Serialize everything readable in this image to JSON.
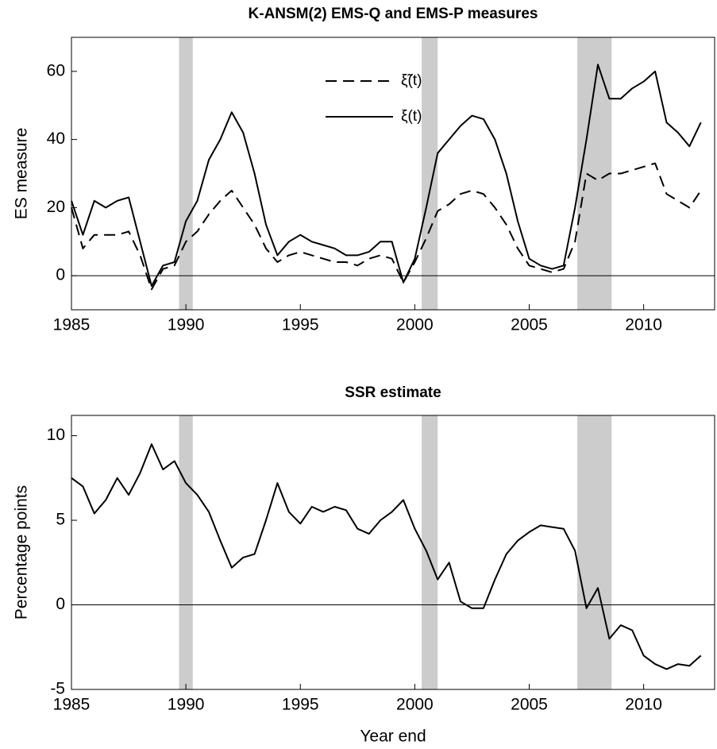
{
  "chart_data": [
    {
      "type": "line",
      "title": "K-ANSM(2) EMS-Q and EMS-P measures",
      "ylabel": "ES measure",
      "x": [
        1985,
        1985.5,
        1986,
        1986.5,
        1987,
        1987.5,
        1988,
        1988.5,
        1989,
        1989.5,
        1990,
        1990.5,
        1991,
        1991.5,
        1992,
        1992.5,
        1993,
        1993.5,
        1994,
        1994.5,
        1995,
        1995.5,
        1996,
        1996.5,
        1997,
        1997.5,
        1998,
        1998.5,
        1999,
        1999.5,
        2000,
        2000.5,
        2001,
        2001.5,
        2002,
        2002.5,
        2003,
        2003.5,
        2004,
        2004.5,
        2005,
        2005.5,
        2006,
        2006.5,
        2007,
        2007.5,
        2008,
        2008.5,
        2009,
        2009.5,
        2010,
        2010.5,
        2011,
        2011.5,
        2012,
        2012.5
      ],
      "series": [
        {
          "name": "ξ̃(t)",
          "color": "#000000",
          "style": "dashed",
          "values": [
            20,
            8,
            12,
            12,
            12,
            13,
            6,
            -4,
            2,
            3,
            10,
            13,
            18,
            22,
            25,
            20,
            15,
            8,
            4,
            6,
            7,
            6,
            5,
            4,
            4,
            3,
            5,
            6,
            5,
            -2,
            4,
            11,
            19,
            21,
            24,
            25,
            24,
            20,
            15,
            8,
            3,
            2,
            1,
            2,
            10,
            30,
            28,
            30,
            30,
            31,
            32,
            33,
            24,
            22,
            20,
            25
          ]
        },
        {
          "name": "ξ(t)",
          "color": "#000000",
          "style": "solid",
          "values": [
            22,
            12,
            22,
            20,
            22,
            23,
            10,
            -3,
            3,
            4,
            16,
            22,
            34,
            40,
            48,
            42,
            30,
            15,
            6,
            10,
            12,
            10,
            9,
            8,
            6,
            6,
            7,
            10,
            10,
            -2,
            5,
            20,
            36,
            40,
            44,
            47,
            46,
            40,
            30,
            16,
            5,
            3,
            2,
            3,
            20,
            40,
            62,
            52,
            52,
            55,
            57,
            60,
            45,
            42,
            38,
            45
          ]
        }
      ],
      "xlim": [
        1985,
        2013.1
      ],
      "xticks": [
        1985,
        1990,
        1995,
        2000,
        2005,
        2010
      ],
      "ylim": [
        -10,
        70
      ],
      "yticks": [
        0,
        20,
        40,
        60
      ],
      "reference_line": 0,
      "shaded_regions": [
        [
          1989.7,
          1990.3
        ],
        [
          2000.3,
          2001.0
        ],
        [
          2007.1,
          2008.6
        ]
      ],
      "shade_color": "#cccccc",
      "legend": "upper center"
    },
    {
      "type": "line",
      "title": "SSR estimate",
      "ylabel": "Percentage points",
      "xlabel": "Year end",
      "x": [
        1985,
        1985.5,
        1986,
        1986.5,
        1987,
        1987.5,
        1988,
        1988.5,
        1989,
        1989.5,
        1990,
        1990.5,
        1991,
        1991.5,
        1992,
        1992.5,
        1993,
        1993.5,
        1994,
        1994.5,
        1995,
        1995.5,
        1996,
        1996.5,
        1997,
        1997.5,
        1998,
        1998.5,
        1999,
        1999.5,
        2000,
        2000.5,
        2001,
        2001.5,
        2002,
        2002.5,
        2003,
        2003.5,
        2004,
        2004.5,
        2005,
        2005.5,
        2006,
        2006.5,
        2007,
        2007.5,
        2008,
        2008.5,
        2009,
        2009.5,
        2010,
        2010.5,
        2011,
        2011.5,
        2012,
        2012.5
      ],
      "series": [
        {
          "color": "#000000",
          "style": "solid",
          "values": [
            7.5,
            7.0,
            5.4,
            6.2,
            7.5,
            6.5,
            7.8,
            9.5,
            8.0,
            8.5,
            7.2,
            6.5,
            5.5,
            3.8,
            2.2,
            2.8,
            3.0,
            5.0,
            7.2,
            5.5,
            4.8,
            5.8,
            5.5,
            5.8,
            5.6,
            4.5,
            4.2,
            5.0,
            5.5,
            6.2,
            4.5,
            3.2,
            1.5,
            2.5,
            0.2,
            -0.2,
            -0.2,
            1.5,
            3.0,
            3.8,
            4.3,
            4.7,
            4.6,
            4.5,
            3.2,
            -0.2,
            1.0,
            -2.0,
            -1.2,
            -1.5,
            -3.0,
            -3.5,
            -3.8,
            -3.5,
            -3.6,
            -3.0
          ]
        }
      ],
      "xlim": [
        1985,
        2013.1
      ],
      "xticks": [
        1985,
        1990,
        1995,
        2000,
        2005,
        2010
      ],
      "ylim": [
        -5,
        11.2
      ],
      "yticks": [
        -5,
        0,
        5,
        10
      ],
      "reference_line": 0,
      "shaded_regions": [
        [
          1989.7,
          1990.3
        ],
        [
          2000.3,
          2001.0
        ],
        [
          2007.1,
          2008.6
        ]
      ],
      "shade_color": "#cccccc"
    }
  ]
}
